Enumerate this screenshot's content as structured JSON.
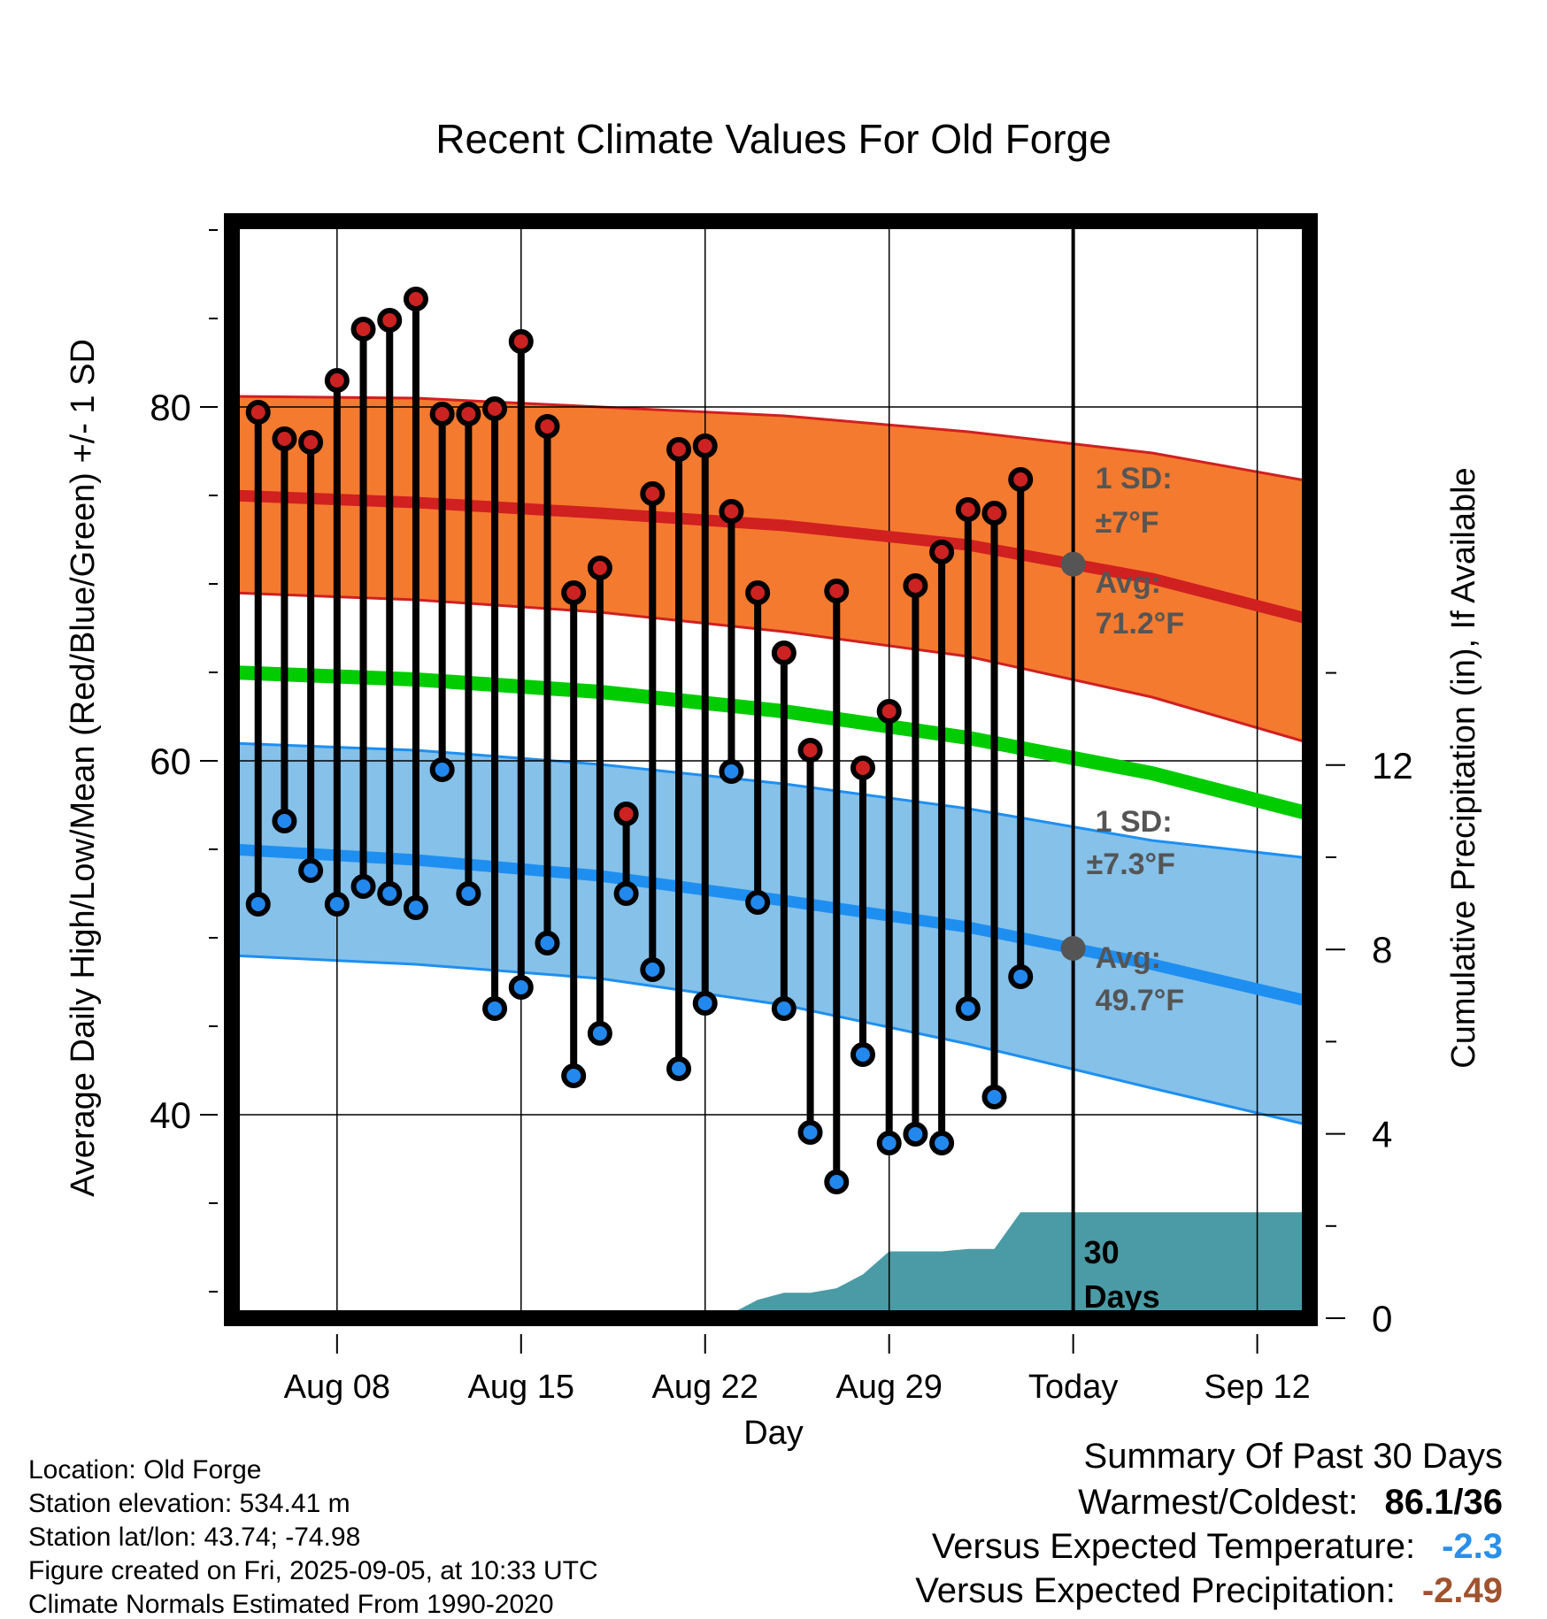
{
  "chart_data": {
    "type": "line",
    "title": "Recent Climate Values For Old Forge",
    "xlabel": "Day",
    "ylabel": "Average Daily High/Low/Mean (Red/Blue/Green) +/- 1 SD",
    "y2label": "Cumulative Precipitation (in), If Available",
    "ylim": [
      28.5,
      90.5
    ],
    "y2lim": [
      0,
      23.8
    ],
    "xlim": [
      "2025-08-04",
      "2025-09-14"
    ],
    "yticks": [
      "40",
      "60",
      "80"
    ],
    "y2ticks": [
      "0",
      "4",
      "8",
      "12"
    ],
    "xticks": [
      "Aug 08",
      "Aug 15",
      "Aug 22",
      "Aug 29",
      "Today",
      "Sep 12"
    ],
    "today": "2025-09-05",
    "grid": true,
    "observed": {
      "dates": [
        "2025-08-05",
        "2025-08-06",
        "2025-08-07",
        "2025-08-08",
        "2025-08-09",
        "2025-08-10",
        "2025-08-11",
        "2025-08-12",
        "2025-08-13",
        "2025-08-14",
        "2025-08-15",
        "2025-08-16",
        "2025-08-17",
        "2025-08-18",
        "2025-08-19",
        "2025-08-20",
        "2025-08-21",
        "2025-08-22",
        "2025-08-23",
        "2025-08-24",
        "2025-08-25",
        "2025-08-26",
        "2025-08-27",
        "2025-08-28",
        "2025-08-29",
        "2025-08-30",
        "2025-08-31",
        "2025-09-01",
        "2025-09-02",
        "2025-09-03",
        "2025-09-04"
      ],
      "high": [
        79.7,
        78.2,
        78.0,
        81.5,
        84.4,
        84.9,
        86.1,
        79.6,
        79.6,
        79.9,
        83.7,
        78.9,
        69.5,
        70.9,
        57.0,
        75.1,
        77.6,
        77.8,
        74.1,
        69.5,
        66.1,
        60.6,
        69.6,
        59.6,
        62.8,
        69.9,
        71.8,
        74.2,
        74.0,
        75.9,
        null
      ],
      "low": [
        51.9,
        56.6,
        53.8,
        51.9,
        52.9,
        52.5,
        51.7,
        59.5,
        52.5,
        46.0,
        47.2,
        49.7,
        42.2,
        44.6,
        52.5,
        48.2,
        42.6,
        46.3,
        59.4,
        52.0,
        46.0,
        39.0,
        36.2,
        43.4,
        38.4,
        38.9,
        38.4,
        46.0,
        41.0,
        47.8,
        null
      ]
    },
    "normals": {
      "dates": [
        "2025-08-04",
        "2025-08-11",
        "2025-08-18",
        "2025-08-25",
        "2025-09-01",
        "2025-09-08",
        "2025-09-14"
      ],
      "high_mean": [
        75.0,
        74.6,
        74.0,
        73.3,
        72.2,
        70.3,
        68.0
      ],
      "high_upper": [
        80.6,
        80.5,
        80.0,
        79.5,
        78.6,
        77.4,
        75.8
      ],
      "high_lower": [
        69.5,
        69.1,
        68.4,
        67.3,
        65.9,
        63.6,
        61.0
      ],
      "mean": [
        65.0,
        64.6,
        63.9,
        62.8,
        61.3,
        59.3,
        57.0
      ],
      "low_mean": [
        55.0,
        54.4,
        53.5,
        52.1,
        50.6,
        48.5,
        46.4
      ],
      "low_upper": [
        61.0,
        60.6,
        59.8,
        58.7,
        57.3,
        55.5,
        54.5
      ],
      "low_lower": [
        49.0,
        48.5,
        47.7,
        46.2,
        44.0,
        41.5,
        39.4
      ]
    },
    "precip": {
      "dates": [
        "2025-08-04",
        "2025-08-18",
        "2025-08-19",
        "2025-08-20",
        "2025-08-21",
        "2025-08-22",
        "2025-08-23",
        "2025-08-24",
        "2025-08-25",
        "2025-08-26",
        "2025-08-27",
        "2025-08-28",
        "2025-08-29",
        "2025-08-30",
        "2025-08-31",
        "2025-09-01",
        "2025-09-02",
        "2025-09-03",
        "2025-09-04",
        "2025-09-14"
      ],
      "cumulative": [
        0,
        0,
        0.1,
        0.1,
        0.1,
        0.1,
        0.1,
        0.4,
        0.55,
        0.55,
        0.65,
        0.95,
        1.45,
        1.45,
        1.45,
        1.5,
        1.5,
        2.3,
        2.3,
        2.3
      ]
    },
    "annotations": {
      "high_sd": "1 SD:",
      "high_sd_value": "±7°F",
      "high_avg": "Avg:",
      "high_avg_value": "71.2°F",
      "low_sd": "1 SD:",
      "low_sd_value": "±7.3°F",
      "low_avg": "Avg:",
      "low_avg_value": "49.7°F",
      "days_line1": "30",
      "days_line2": "Days"
    },
    "colors": {
      "high_band": "#f47a2f",
      "high_line": "#d02020",
      "low_band": "#85c1e9",
      "low_line": "#1e8ff0",
      "mean_line": "#00cc00",
      "precip": "#4a9ba5",
      "high_dot": "#cc2222",
      "low_dot": "#2288ee"
    }
  },
  "info": {
    "location": "Location: Old Forge",
    "elevation": "Station elevation: 534.41 m",
    "latlon": "Station lat/lon: 43.74; -74.98",
    "created": "Figure created on Fri, 2025-09-05, at 10:33 UTC",
    "normals": "Climate Normals Estimated From 1990-2020"
  },
  "summary": {
    "title": "Summary Of Past 30 Days",
    "warmest_label": "Warmest/Coldest:",
    "warmest_value": "86.1/36",
    "temp_label": "Versus Expected Temperature:",
    "temp_value": "-2.3",
    "precip_label": "Versus Expected Precipitation:",
    "precip_value": "-2.49",
    "temp_color": "#2a8fe8",
    "precip_color": "#a0522d"
  }
}
